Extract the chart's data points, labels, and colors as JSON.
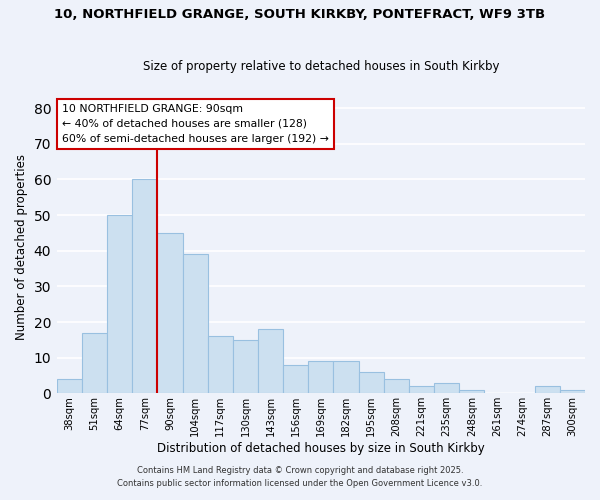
{
  "title": "10, NORTHFIELD GRANGE, SOUTH KIRKBY, PONTEFRACT, WF9 3TB",
  "subtitle": "Size of property relative to detached houses in South Kirkby",
  "xlabel": "Distribution of detached houses by size in South Kirkby",
  "ylabel": "Number of detached properties",
  "bar_color": "#cce0f0",
  "bar_edge_color": "#99c0e0",
  "background_color": "#eef2fa",
  "grid_color": "#ffffff",
  "categories": [
    "38sqm",
    "51sqm",
    "64sqm",
    "77sqm",
    "90sqm",
    "104sqm",
    "117sqm",
    "130sqm",
    "143sqm",
    "156sqm",
    "169sqm",
    "182sqm",
    "195sqm",
    "208sqm",
    "221sqm",
    "235sqm",
    "248sqm",
    "261sqm",
    "274sqm",
    "287sqm",
    "300sqm"
  ],
  "values": [
    4,
    17,
    50,
    60,
    45,
    39,
    16,
    15,
    18,
    8,
    9,
    9,
    6,
    4,
    2,
    3,
    1,
    0,
    0,
    2,
    1
  ],
  "ylim": [
    0,
    82
  ],
  "yticks": [
    0,
    10,
    20,
    30,
    40,
    50,
    60,
    70,
    80
  ],
  "vline_color": "#cc0000",
  "annotation_title": "10 NORTHFIELD GRANGE: 90sqm",
  "annotation_line1": "← 40% of detached houses are smaller (128)",
  "annotation_line2": "60% of semi-detached houses are larger (192) →",
  "footer1": "Contains HM Land Registry data © Crown copyright and database right 2025.",
  "footer2": "Contains public sector information licensed under the Open Government Licence v3.0."
}
